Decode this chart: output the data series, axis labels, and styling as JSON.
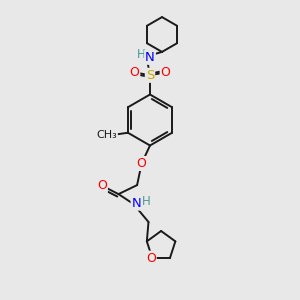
{
  "bg": "#e8e8e8",
  "bond_color": "#1a1a1a",
  "colors": {
    "N": "#0000ff",
    "O": "#ff0000",
    "S": "#ccaa00",
    "H": "#4a9a9a",
    "C": "#1a1a1a"
  },
  "lw": 1.4
}
